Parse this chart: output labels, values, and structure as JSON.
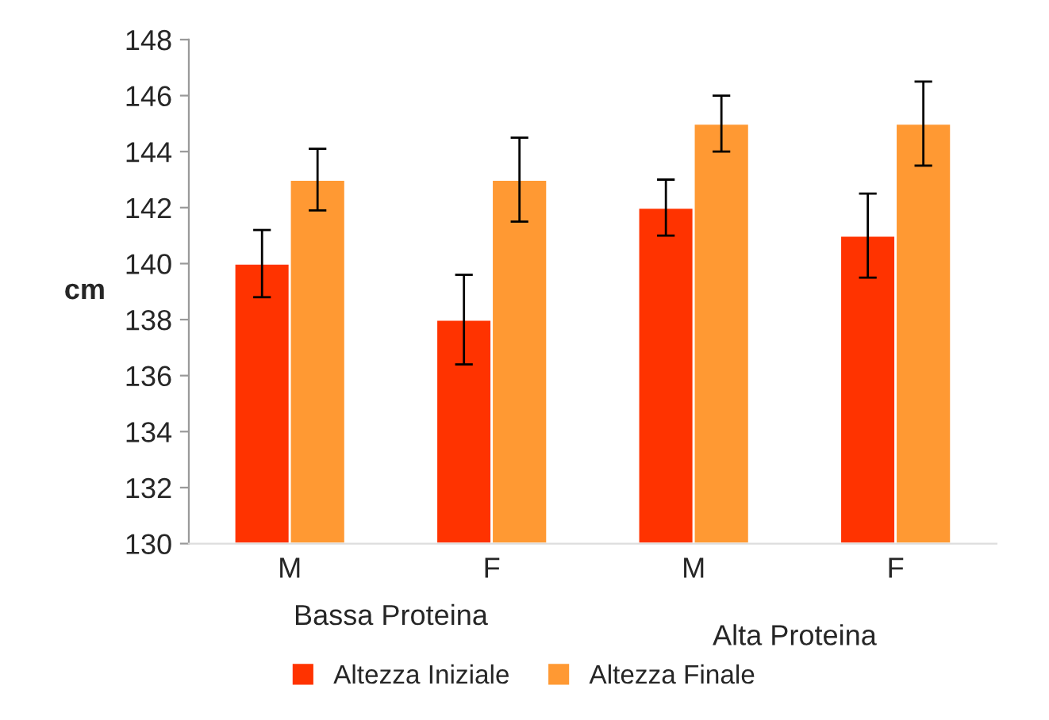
{
  "chart_data": {
    "type": "bar",
    "categories": [
      "M",
      "F",
      "M",
      "F"
    ],
    "ylabel": "cm",
    "series": [
      {
        "name": "Altezza Iniziale",
        "color": "#ff3300",
        "values": [
          140,
          138,
          142,
          141
        ],
        "errors": [
          1.2,
          1.6,
          1.0,
          1.5
        ]
      },
      {
        "name": "Altezza Finale",
        "color": "#ff9933",
        "values": [
          143,
          143,
          145,
          145
        ],
        "errors": [
          1.1,
          1.5,
          1.0,
          1.5
        ]
      }
    ],
    "annotations": [
      "Bassa Proteina",
      "Alta Proteina"
    ],
    "ylim": [
      130,
      148
    ],
    "yticks": [
      130,
      132,
      134,
      136,
      138,
      140,
      142,
      144,
      146,
      148
    ],
    "grid": false,
    "legend": "bottom"
  }
}
